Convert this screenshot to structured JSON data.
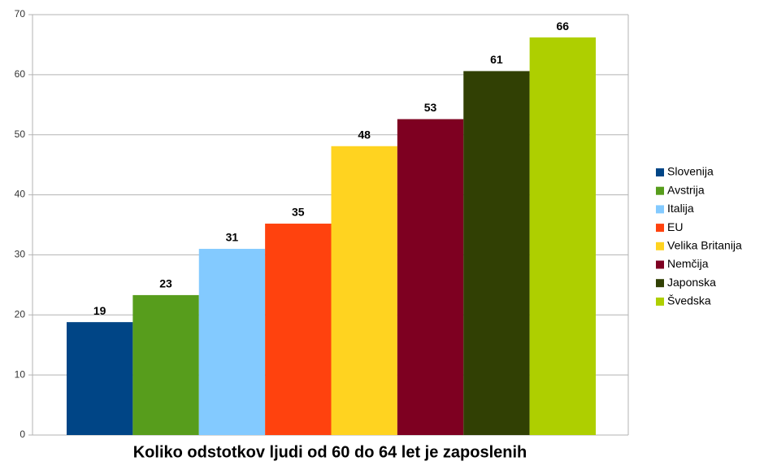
{
  "chart_data": {
    "type": "bar",
    "title": "Koliko odstotkov ljudi od 60 do 64 let je zaposlenih",
    "categories": [
      null
    ],
    "series": [
      {
        "name": "Slovenija",
        "color": "#004586",
        "values": [
          18.8
        ],
        "value_labels": [
          "19"
        ]
      },
      {
        "name": "Avstrija",
        "color": "#579d1c",
        "values": [
          23.3
        ],
        "value_labels": [
          "23"
        ]
      },
      {
        "name": "Italija",
        "color": "#83caff",
        "values": [
          31.0
        ],
        "value_labels": [
          "31"
        ]
      },
      {
        "name": "EU",
        "color": "#ff420e",
        "values": [
          35.2
        ],
        "value_labels": [
          "35"
        ]
      },
      {
        "name": "Velika Britanija",
        "color": "#ffd320",
        "values": [
          48.1
        ],
        "value_labels": [
          "48"
        ]
      },
      {
        "name": "Nemčija",
        "color": "#7e0021",
        "values": [
          52.6
        ],
        "value_labels": [
          "53"
        ]
      },
      {
        "name": "Japonska",
        "color": "#314004",
        "values": [
          60.6
        ],
        "value_labels": [
          "61"
        ]
      },
      {
        "name": "Švedska",
        "color": "#aecf00",
        "values": [
          66.2
        ],
        "value_labels": [
          "66"
        ]
      }
    ],
    "ylim": [
      0,
      70
    ],
    "yticks": [
      0,
      10,
      20,
      30,
      40,
      50,
      60,
      70
    ],
    "grid": true,
    "legend": "right"
  }
}
